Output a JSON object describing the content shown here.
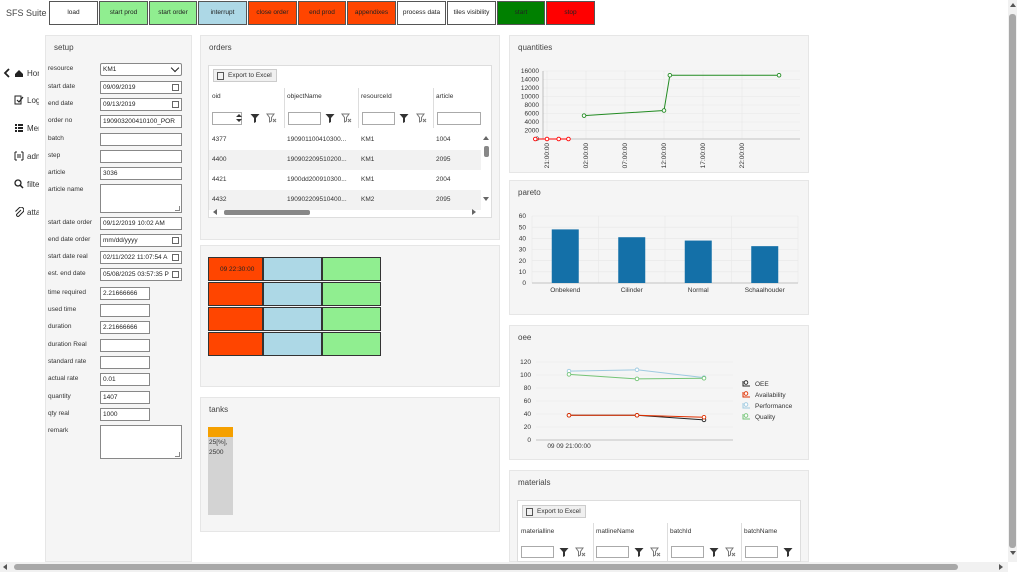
{
  "app": {
    "title": "SFS Suite V"
  },
  "toolbar": [
    {
      "label": "load",
      "color": "#ffffff"
    },
    {
      "label": "start prod",
      "color": "#90ee90"
    },
    {
      "label": "start order",
      "color": "#90ee90"
    },
    {
      "label": "interrupt",
      "color": "#add8e6"
    },
    {
      "label": "close order",
      "color": "#ff4500"
    },
    {
      "label": "end prod",
      "color": "#ff4500"
    },
    {
      "label": "appendixes",
      "color": "#ff4500"
    },
    {
      "label": "process data",
      "color": "#ffffff"
    },
    {
      "label": "tiles visibility",
      "color": "#ffffff"
    },
    {
      "label": "start",
      "color": "#008000"
    },
    {
      "label": "stop",
      "color": "#ff0000"
    }
  ],
  "nav": [
    {
      "label": "Home",
      "icon": "home-icon"
    },
    {
      "label": "Log",
      "icon": "checklist-icon"
    },
    {
      "label": "Menu",
      "icon": "list-icon"
    },
    {
      "label": "admin",
      "icon": "admin-icon"
    },
    {
      "label": "filter",
      "icon": "search-icon"
    },
    {
      "label": "attachments",
      "icon": "paperclip-icon"
    }
  ],
  "setup": {
    "title": "setup",
    "fields": [
      {
        "label": "resource",
        "value": "KM1",
        "type": "select"
      },
      {
        "label": "start date",
        "value": "09/09/2019",
        "type": "date"
      },
      {
        "label": "end date",
        "value": "09/13/2019",
        "type": "date"
      },
      {
        "label": "order no",
        "value": "190903200410100_POR",
        "type": "text"
      },
      {
        "label": "batch",
        "value": "",
        "type": "text"
      },
      {
        "label": "step",
        "value": "",
        "type": "text"
      },
      {
        "label": "article",
        "value": "3036",
        "type": "text"
      },
      {
        "label": "article name",
        "value": "",
        "type": "textarea"
      },
      {
        "label": "start date order",
        "value": "09/12/2019 10:02 AM",
        "type": "text"
      },
      {
        "label": "end date order",
        "value": "mm/dd/yyyy",
        "type": "date"
      },
      {
        "label": "start date real",
        "value": "02/11/2022 11:07:54 A",
        "type": "date"
      },
      {
        "label": "est. end date",
        "value": "05/08/2025 03:57:35 P",
        "type": "date"
      },
      {
        "label": "time required",
        "value": "2.21666666",
        "type": "short"
      },
      {
        "label": "used time",
        "value": "",
        "type": "short"
      },
      {
        "label": "duration",
        "value": "2.21666666",
        "type": "short"
      },
      {
        "label": "duration Real",
        "value": "",
        "type": "short"
      },
      {
        "label": "standard rate",
        "value": "",
        "type": "short"
      },
      {
        "label": "actual rate",
        "value": "0.01",
        "type": "short"
      },
      {
        "label": "quantity",
        "value": "1407",
        "type": "short"
      },
      {
        "label": "qty real",
        "value": "1000",
        "type": "short"
      },
      {
        "label": "remark",
        "value": "",
        "type": "bigtextarea"
      }
    ]
  },
  "orders": {
    "title": "orders",
    "export_label": "Export to Excel",
    "columns": [
      "oid",
      "objectName",
      "resourceId",
      "article"
    ],
    "rows": [
      [
        "4377",
        "190901100410300...",
        "KM1",
        "1004"
      ],
      [
        "4400",
        "190902209510200...",
        "KM1",
        "2095"
      ],
      [
        "4421",
        "1900dd200910300...",
        "KM1",
        "2004"
      ],
      [
        "4432",
        "190902209510400...",
        "KM2",
        "2095"
      ]
    ]
  },
  "tiles": {
    "first_label": "09 22:30:00",
    "colors": {
      "red": "#ff4500",
      "blue": "#add8e6",
      "green": "#90ee90"
    }
  },
  "tanks": {
    "title": "tanks",
    "label_pct": "25[%],",
    "label_val": "2500",
    "fill_fraction": 0.11,
    "fill_color": "#f5a000",
    "empty_color": "#d3d3d3"
  },
  "materials": {
    "title": "materials",
    "export_label": "Export to Excel",
    "columns": [
      "materialline",
      "matlineName",
      "batchId",
      "batchName"
    ]
  },
  "chart_data": [
    {
      "name_ref": "quantities",
      "title": "quantities",
      "type": "line",
      "ylim": [
        0,
        16000
      ],
      "yticks": [
        0,
        2000,
        4000,
        6000,
        8000,
        10000,
        12000,
        14000,
        16000
      ],
      "xticks": [
        "21:00:00",
        "02:00:00",
        "07:00:00",
        "12:00:00",
        "17:00:00",
        "22:00:00"
      ],
      "series": [
        {
          "color": "#ff0000",
          "points": [
            [
              -0.3,
              0
            ],
            [
              0.0,
              0
            ],
            [
              0.3,
              0
            ],
            [
              0.55,
              0
            ]
          ]
        },
        {
          "color": "#228b22",
          "points": [
            [
              0.95,
              5500
            ],
            [
              3.0,
              6700
            ],
            [
              3.15,
              15000
            ],
            [
              5.95,
              15000
            ]
          ]
        }
      ]
    },
    {
      "name_ref": "pareto",
      "title": "pareto",
      "type": "bar",
      "ylim": [
        0,
        60
      ],
      "yticks": [
        0,
        10,
        20,
        30,
        40,
        50,
        60
      ],
      "categories": [
        "Onbekend",
        "Cilinder",
        "Normal",
        "Schaalhouder"
      ],
      "values": [
        48,
        41,
        38,
        33
      ],
      "color": "#1470a8"
    },
    {
      "name_ref": "oee",
      "title": "oee",
      "type": "line",
      "ylim": [
        0,
        120
      ],
      "yticks": [
        0,
        20,
        40,
        60,
        80,
        100,
        120
      ],
      "xtick": "09 09 21:00:00",
      "series": [
        {
          "name": "OEE",
          "color": "#222222",
          "values": [
            38,
            38,
            31
          ]
        },
        {
          "name": "Availability",
          "color": "#e03000",
          "values": [
            38,
            38,
            35
          ]
        },
        {
          "name": "Performance",
          "color": "#9ecae1",
          "values": [
            106,
            108,
            96
          ]
        },
        {
          "name": "Quality",
          "color": "#74c476",
          "values": [
            101,
            94,
            95
          ]
        }
      ]
    }
  ]
}
